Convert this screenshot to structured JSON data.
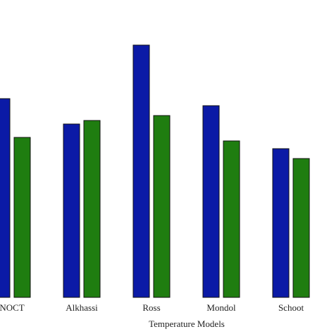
{
  "chart_data": {
    "type": "bar",
    "x_label": "Temperature Models",
    "categories": [
      "NOCT",
      "Alkhassi",
      "Ross",
      "Mondol",
      "Schoot"
    ],
    "series": [
      {
        "color": "#0b1aa6",
        "values": [
          282,
          246,
          358,
          272,
          211
        ]
      },
      {
        "color": "#1f7d10",
        "values": [
          227,
          251,
          258,
          222,
          197
        ]
      }
    ],
    "ylim": [
      0,
      400
    ]
  }
}
